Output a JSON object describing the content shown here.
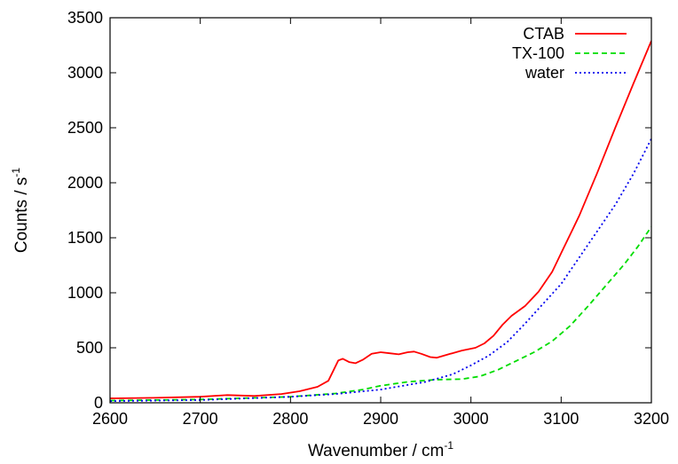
{
  "chart_data": {
    "type": "line",
    "title": "",
    "xlabel": {
      "base": "Wavenumber / cm",
      "sup": "-1"
    },
    "ylabel": {
      "base": "Counts / s",
      "sup": "-1"
    },
    "xlim": [
      2600,
      3200
    ],
    "ylim": [
      0,
      3500
    ],
    "xticks": [
      2600,
      2700,
      2800,
      2900,
      3000,
      3100,
      3200
    ],
    "yticks": [
      0,
      500,
      1000,
      1500,
      2000,
      2500,
      3000,
      3500
    ],
    "grid": false,
    "legend_position": "top-right",
    "series": [
      {
        "name": "CTAB",
        "color": "#ff0000",
        "dash": "solid",
        "points": [
          [
            2600,
            40
          ],
          [
            2650,
            45
          ],
          [
            2700,
            55
          ],
          [
            2730,
            70
          ],
          [
            2760,
            62
          ],
          [
            2790,
            80
          ],
          [
            2810,
            105
          ],
          [
            2830,
            145
          ],
          [
            2842,
            200
          ],
          [
            2848,
            300
          ],
          [
            2853,
            385
          ],
          [
            2858,
            400
          ],
          [
            2865,
            370
          ],
          [
            2872,
            360
          ],
          [
            2880,
            390
          ],
          [
            2890,
            445
          ],
          [
            2900,
            460
          ],
          [
            2910,
            450
          ],
          [
            2920,
            440
          ],
          [
            2930,
            460
          ],
          [
            2937,
            465
          ],
          [
            2945,
            445
          ],
          [
            2955,
            415
          ],
          [
            2962,
            410
          ],
          [
            2975,
            440
          ],
          [
            2990,
            475
          ],
          [
            3005,
            500
          ],
          [
            3015,
            540
          ],
          [
            3025,
            610
          ],
          [
            3035,
            710
          ],
          [
            3045,
            790
          ],
          [
            3060,
            880
          ],
          [
            3075,
            1010
          ],
          [
            3090,
            1190
          ],
          [
            3100,
            1360
          ],
          [
            3120,
            1700
          ],
          [
            3140,
            2090
          ],
          [
            3160,
            2500
          ],
          [
            3180,
            2900
          ],
          [
            3200,
            3290
          ]
        ]
      },
      {
        "name": "TX-100",
        "color": "#00dd00",
        "dash": "dashed",
        "points": [
          [
            2600,
            20
          ],
          [
            2700,
            30
          ],
          [
            2800,
            55
          ],
          [
            2850,
            85
          ],
          [
            2880,
            120
          ],
          [
            2900,
            155
          ],
          [
            2930,
            190
          ],
          [
            2960,
            210
          ],
          [
            2990,
            215
          ],
          [
            3010,
            240
          ],
          [
            3030,
            300
          ],
          [
            3050,
            380
          ],
          [
            3070,
            460
          ],
          [
            3090,
            560
          ],
          [
            3110,
            700
          ],
          [
            3130,
            880
          ],
          [
            3150,
            1070
          ],
          [
            3170,
            1260
          ],
          [
            3185,
            1420
          ],
          [
            3200,
            1600
          ]
        ]
      },
      {
        "name": "water",
        "color": "#0000ee",
        "dash": "dotted",
        "points": [
          [
            2600,
            15
          ],
          [
            2700,
            25
          ],
          [
            2800,
            55
          ],
          [
            2850,
            80
          ],
          [
            2900,
            120
          ],
          [
            2950,
            190
          ],
          [
            2980,
            260
          ],
          [
            3000,
            340
          ],
          [
            3020,
            430
          ],
          [
            3040,
            550
          ],
          [
            3060,
            720
          ],
          [
            3080,
            900
          ],
          [
            3100,
            1080
          ],
          [
            3120,
            1320
          ],
          [
            3140,
            1560
          ],
          [
            3160,
            1800
          ],
          [
            3180,
            2080
          ],
          [
            3200,
            2400
          ]
        ]
      }
    ]
  }
}
